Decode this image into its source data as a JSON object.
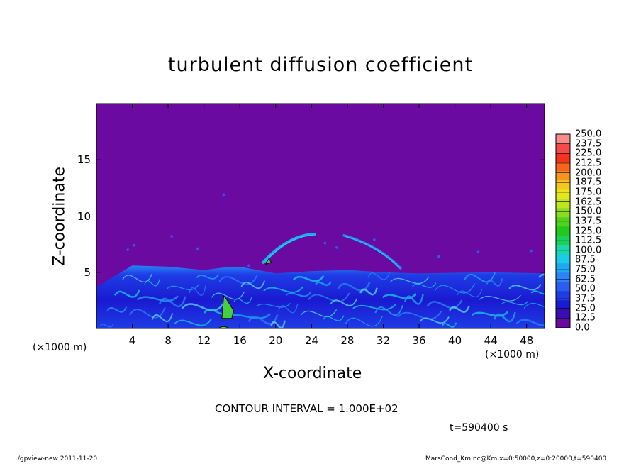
{
  "chart_data": {
    "type": "heatmap",
    "title": "turbulent diffusion coefficient",
    "xlabel": "X-coordinate",
    "ylabel": "Z-coordinate",
    "x_unit": "(×1000 m)",
    "xlim": [
      0,
      50
    ],
    "ylim": [
      0,
      20
    ],
    "x_ticks": [
      "4",
      "8",
      "12",
      "16",
      "20",
      "24",
      "28",
      "32",
      "36",
      "40",
      "44",
      "48"
    ],
    "y_ticks": [
      "5",
      "10",
      "15"
    ],
    "contour_interval": "CONTOUR INTERVAL = 1.000E+02",
    "time_label": "t=590400 s",
    "colorbar": {
      "levels": [
        "0.0",
        "12.5",
        "25.0",
        "37.5",
        "50.0",
        "62.5",
        "75.0",
        "87.5",
        "100.0",
        "112.5",
        "125.0",
        "137.5",
        "150.0",
        "162.5",
        "175.0",
        "187.5",
        "200.0",
        "212.5",
        "225.0",
        "237.5",
        "250.0"
      ],
      "colors": [
        "#6a0aa0",
        "#3a0cb4",
        "#1a1ad0",
        "#1e3ce6",
        "#2a5cf2",
        "#2a84f6",
        "#1eaaf2",
        "#1acce6",
        "#1ad8a8",
        "#1ad25a",
        "#22c81e",
        "#50d21e",
        "#8cdc1e",
        "#bee61e",
        "#e6e61e",
        "#f6c81e",
        "#f6961e",
        "#f6641e",
        "#f6321e",
        "#f64a4a",
        "#f68c8c"
      ]
    },
    "background_color": "#6a0aa0",
    "turbulent_layer_top_km": [
      3.7,
      5.6,
      5.5,
      5.2,
      5.4,
      5.5,
      4.9,
      5.1,
      5.2,
      5.0,
      4.9,
      5.0,
      4.9
    ],
    "turbulent_layer_x_km": [
      0,
      4,
      8,
      12,
      14,
      16,
      20,
      24,
      28,
      32,
      36,
      44,
      50
    ]
  },
  "footer": {
    "left": "./gpview-new   2011-11-20",
    "right": "MarsCond_Km.nc@Km,x=0:50000,z=0:20000,t=590400"
  }
}
